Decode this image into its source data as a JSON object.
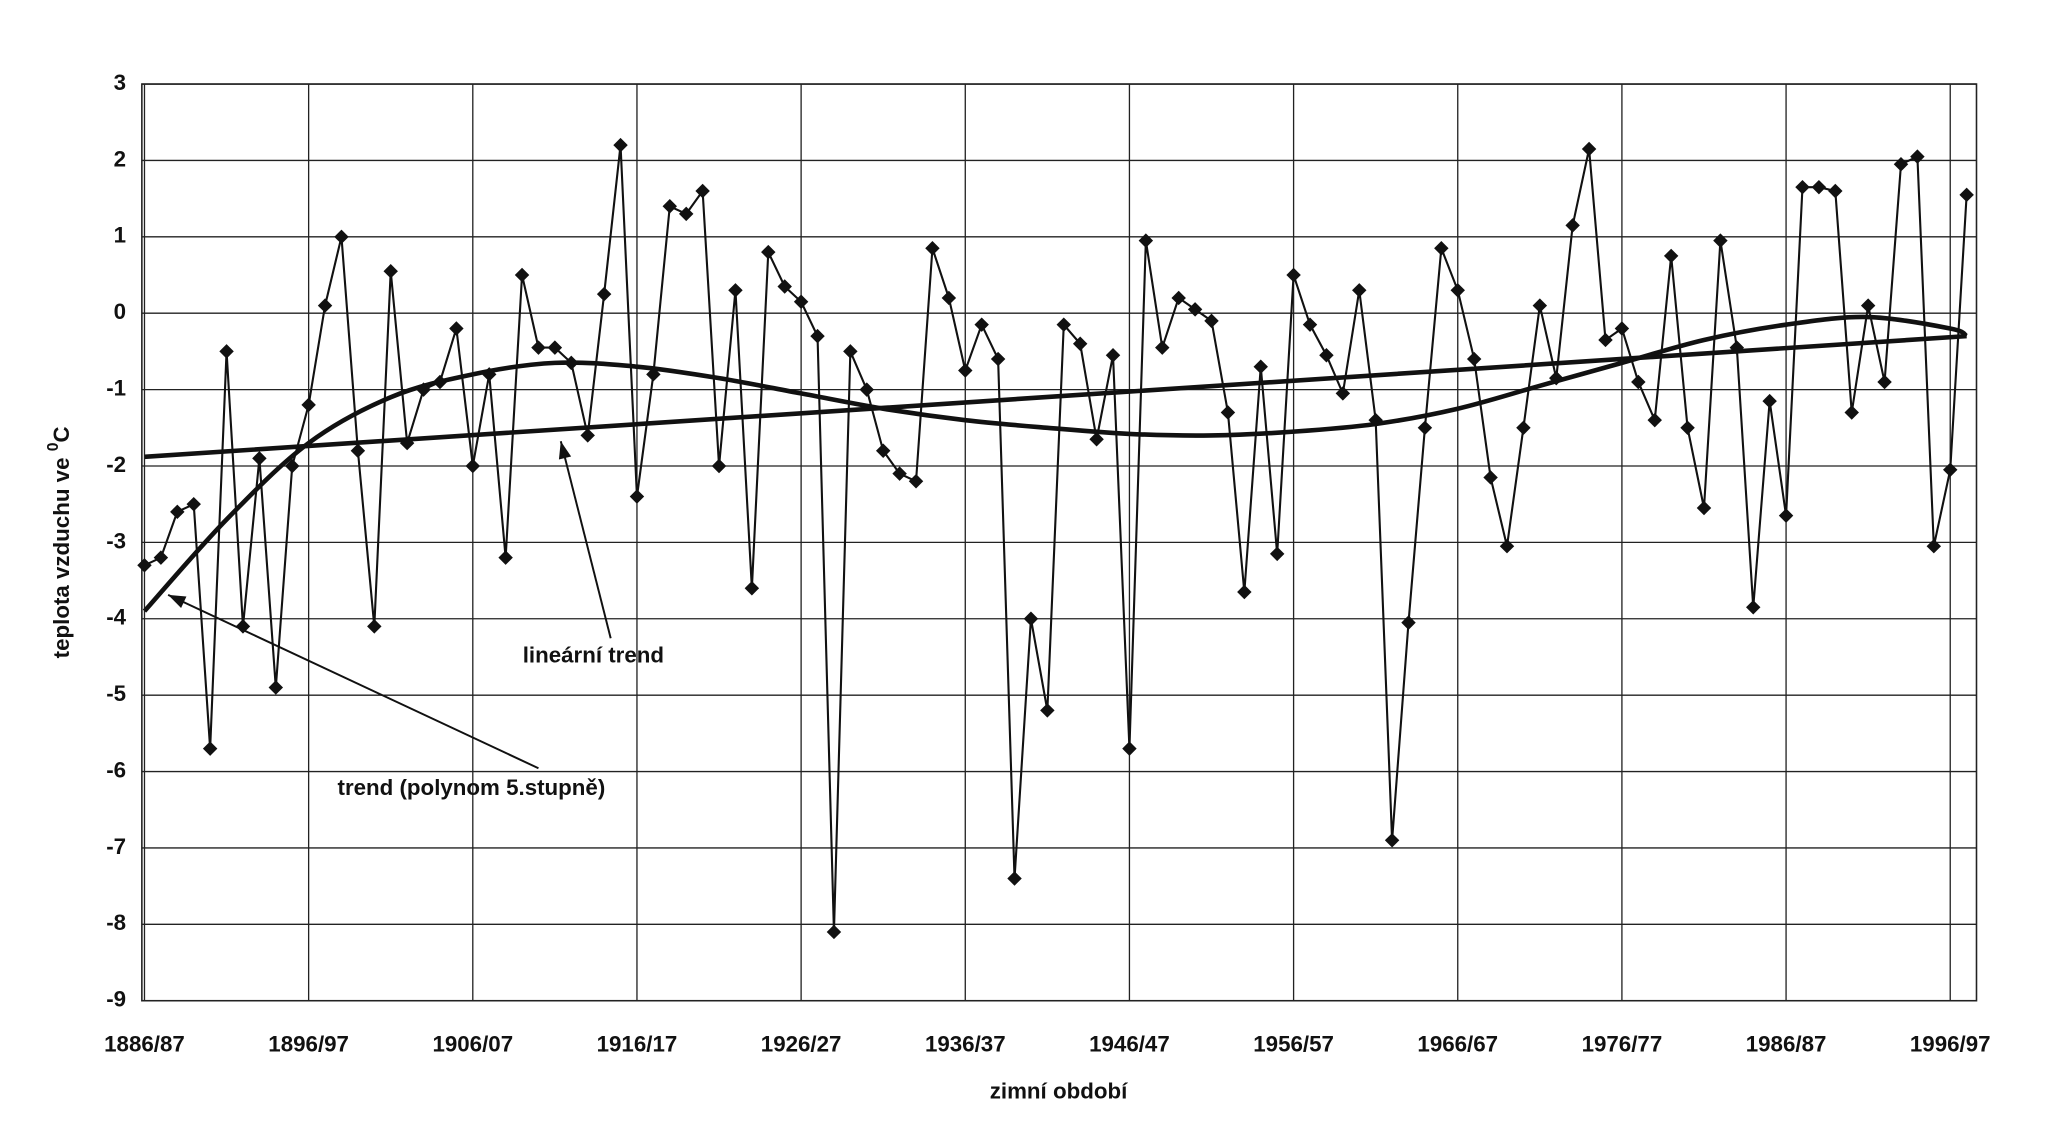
{
  "chart_data": {
    "type": "line",
    "y_label": "teplota vzduchu  ve ",
    "y_label_sup": "0",
    "y_label_unit": "C",
    "x_label": "zimní období",
    "categories": [
      "1886/87",
      null,
      null,
      null,
      null,
      null,
      null,
      null,
      null,
      null,
      "1896/97",
      null,
      null,
      null,
      null,
      null,
      null,
      null,
      null,
      null,
      "1906/07",
      null,
      null,
      null,
      null,
      null,
      null,
      null,
      null,
      null,
      "1916/17",
      null,
      null,
      null,
      null,
      null,
      null,
      null,
      null,
      null,
      "1926/27",
      null,
      null,
      null,
      null,
      null,
      null,
      null,
      null,
      null,
      "1936/37",
      null,
      null,
      null,
      null,
      null,
      null,
      null,
      null,
      null,
      "1946/47",
      null,
      null,
      null,
      null,
      null,
      null,
      null,
      null,
      null,
      "1956/57",
      null,
      null,
      null,
      null,
      null,
      null,
      null,
      null,
      null,
      "1966/67",
      null,
      null,
      null,
      null,
      null,
      null,
      null,
      null,
      null,
      "1976/77",
      null,
      null,
      null,
      null,
      null,
      null,
      null,
      null,
      null,
      "1986/87",
      null,
      null,
      null,
      null,
      null,
      null,
      null,
      null,
      null,
      "1996/97",
      null
    ],
    "series": [
      {
        "color": "#111111",
        "values": [
          -3.3,
          -3.2,
          -2.6,
          -2.5,
          -5.7,
          -0.5,
          -4.1,
          -1.9,
          -4.9,
          -2.0,
          -1.2,
          0.1,
          1.0,
          -1.8,
          -4.1,
          0.55,
          -1.7,
          -1.0,
          -0.9,
          -0.2,
          -2.0,
          -0.8,
          -3.2,
          0.5,
          -0.45,
          -0.45,
          -0.65,
          -1.6,
          0.25,
          2.2,
          -2.4,
          -0.8,
          1.4,
          1.3,
          1.6,
          -2.0,
          0.3,
          -3.6,
          0.8,
          0.35,
          0.15,
          -0.3,
          -8.1,
          -0.5,
          -1.0,
          -1.8,
          -2.1,
          -2.2,
          0.85,
          0.2,
          -0.75,
          -0.15,
          -0.6,
          -7.4,
          -4.0,
          -5.2,
          -0.15,
          -0.4,
          -1.65,
          -0.55,
          -5.7,
          0.95,
          -0.45,
          0.2,
          0.05,
          -0.1,
          -1.3,
          -3.65,
          -0.7,
          -3.15,
          0.5,
          -0.15,
          -0.55,
          -1.05,
          0.3,
          -1.4,
          -6.9,
          -4.05,
          -1.5,
          0.85,
          0.3,
          -0.6,
          -2.15,
          -3.05,
          -1.5,
          0.1,
          -0.85,
          1.15,
          2.15,
          -0.35,
          -0.2,
          -0.9,
          -1.4,
          0.75,
          -1.5,
          -2.55,
          0.95,
          -0.45,
          -3.85,
          -1.15,
          -2.65,
          1.65,
          1.65,
          1.6,
          -1.3,
          0.1,
          -0.9,
          1.95,
          2.05,
          -3.05,
          -2.05,
          1.55
        ]
      }
    ],
    "trends": [
      {
        "name": "lineární trend",
        "color": "#111111",
        "x": [
          "1886/87",
          "1997/98"
        ],
        "values": [
          -1.88,
          -0.3
        ]
      },
      {
        "name": "trend (polynom 5.stupně)",
        "color": "#111111",
        "x": [
          "1886/87",
          "1891/92",
          "1896/97",
          "1901/02",
          "1906/07",
          "1911/12",
          "1916/17",
          "1921/22",
          "1926/27",
          "1931/32",
          "1936/37",
          "1941/42",
          "1946/47",
          "1951/52",
          "1956/57",
          "1961/62",
          "1966/67",
          "1971/72",
          "1976/77",
          "1981/82",
          "1986/87",
          "1991/92",
          "1996/97",
          "1997/98"
        ],
        "values": [
          -3.9,
          -2.7,
          -1.7,
          -1.1,
          -0.8,
          -0.65,
          -0.7,
          -0.85,
          -1.05,
          -1.25,
          -1.4,
          -1.5,
          -1.58,
          -1.6,
          -1.55,
          -1.45,
          -1.25,
          -0.95,
          -0.65,
          -0.35,
          -0.15,
          -0.05,
          -0.2,
          -0.3
        ]
      }
    ],
    "ylim": [
      -9,
      3
    ],
    "yticks": [
      -9,
      -8,
      -7,
      -6,
      -5,
      -4,
      -3,
      -2,
      -1,
      0,
      1,
      2,
      3
    ],
    "grid": true
  }
}
